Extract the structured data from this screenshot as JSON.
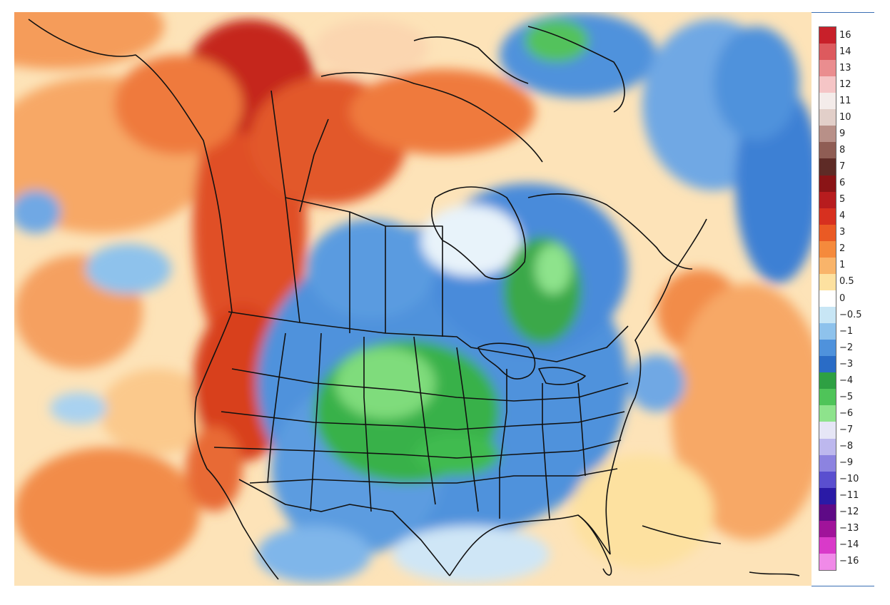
{
  "map": {
    "region": "North America",
    "overlay": "anomaly color field",
    "labels": []
  },
  "legend": {
    "entries": [
      {
        "label": "16",
        "color": "#c8202a"
      },
      {
        "label": "14",
        "color": "#dd5a5e"
      },
      {
        "label": "13",
        "color": "#ea8d8f"
      },
      {
        "label": "12",
        "color": "#f5c5c6"
      },
      {
        "label": "11",
        "color": "#f4ecea"
      },
      {
        "label": "10",
        "color": "#e2cfc9"
      },
      {
        "label": "9",
        "color": "#b89088"
      },
      {
        "label": "8",
        "color": "#8f5d54"
      },
      {
        "label": "7",
        "color": "#5e2b26"
      },
      {
        "label": "6",
        "color": "#8a1416"
      },
      {
        "label": "5",
        "color": "#b71c1e"
      },
      {
        "label": "4",
        "color": "#d7301f"
      },
      {
        "label": "3",
        "color": "#ea5a24"
      },
      {
        "label": "2",
        "color": "#f58a3c"
      },
      {
        "label": "1",
        "color": "#f9b46a"
      },
      {
        "label": "0.5",
        "color": "#fde1a0"
      },
      {
        "label": "0",
        "color": "#ffffff"
      },
      {
        "label": "−0.5",
        "color": "#c8e6f5"
      },
      {
        "label": "−1",
        "color": "#8ec2ec"
      },
      {
        "label": "−2",
        "color": "#4f92dc"
      },
      {
        "label": "−3",
        "color": "#2a6cc6"
      },
      {
        "label": "−4",
        "color": "#2ea043"
      },
      {
        "label": "−5",
        "color": "#4fc459"
      },
      {
        "label": "−6",
        "color": "#8ee38c"
      },
      {
        "label": "−7",
        "color": "#e6e6f6"
      },
      {
        "label": "−8",
        "color": "#bdb8ee"
      },
      {
        "label": "−9",
        "color": "#8c83e0"
      },
      {
        "label": "−10",
        "color": "#5a4fcf"
      },
      {
        "label": "−11",
        "color": "#2a1aa6"
      },
      {
        "label": "−12",
        "color": "#5e0a86"
      },
      {
        "label": "−13",
        "color": "#a0139a"
      },
      {
        "label": "−14",
        "color": "#d93ac9"
      },
      {
        "label": "−16",
        "color": "#f08ae8"
      }
    ]
  }
}
